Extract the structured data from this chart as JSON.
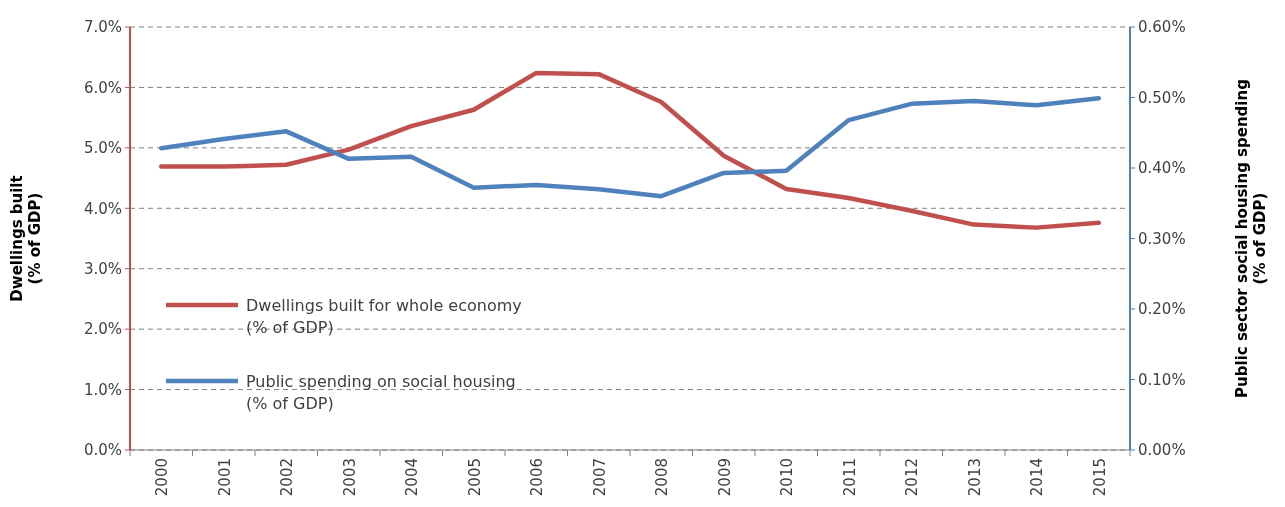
{
  "chart_data": {
    "type": "line",
    "ylabel": "Dwellings built (% of GDP)",
    "y2label": "Public sector social housing spending (% of GDP)",
    "categories": [
      "2000",
      "2001",
      "2002",
      "2003",
      "2004",
      "2005",
      "2006",
      "2007",
      "2008",
      "2009",
      "2010",
      "2011",
      "2012",
      "2013",
      "2014",
      "2015"
    ],
    "series": [
      {
        "name": "Dwellings built for whole economy (% of GDP)",
        "color": "#c0504d",
        "values": [
          4.69,
          4.69,
          4.72,
          4.97,
          5.36,
          5.63,
          6.24,
          6.22,
          5.76,
          4.87,
          4.32,
          4.17,
          3.96,
          3.73,
          3.68,
          3.76
        ]
      },
      {
        "name": "Public spending on social housing (% of GDP)",
        "color": "#4f81bd",
        "axis": "y2",
        "values": [
          0.428,
          0.441,
          0.452,
          0.413,
          0.416,
          0.372,
          0.376,
          0.37,
          0.36,
          0.393,
          0.396,
          0.468,
          0.491,
          0.495,
          0.489,
          0.499
        ]
      }
    ],
    "ylim": [
      0,
      7
    ],
    "yticks": [
      {
        "value": 0,
        "label": "0.0%"
      },
      {
        "value": 1,
        "label": "1.0%"
      },
      {
        "value": 2,
        "label": "2.0%"
      },
      {
        "value": 3,
        "label": "3.0%"
      },
      {
        "value": 4,
        "label": "4.0%"
      },
      {
        "value": 5,
        "label": "5.0%"
      },
      {
        "value": 6,
        "label": "6.0%"
      },
      {
        "value": 7,
        "label": "7.0%"
      }
    ],
    "y2lim": [
      0,
      0.6
    ],
    "y2ticks": [
      {
        "value": 0,
        "label": "0.00%"
      },
      {
        "value": 0.1,
        "label": "0.10%"
      },
      {
        "value": 0.2,
        "label": "0.20%"
      },
      {
        "value": 0.3,
        "label": "0.30%"
      },
      {
        "value": 0.4,
        "label": "0.40%"
      },
      {
        "value": 0.5,
        "label": "0.50%"
      },
      {
        "value": 0.6,
        "label": "0.60%"
      }
    ],
    "grid": "y",
    "legend": "bottom left",
    "line_style": "solid",
    "marker": "none"
  }
}
